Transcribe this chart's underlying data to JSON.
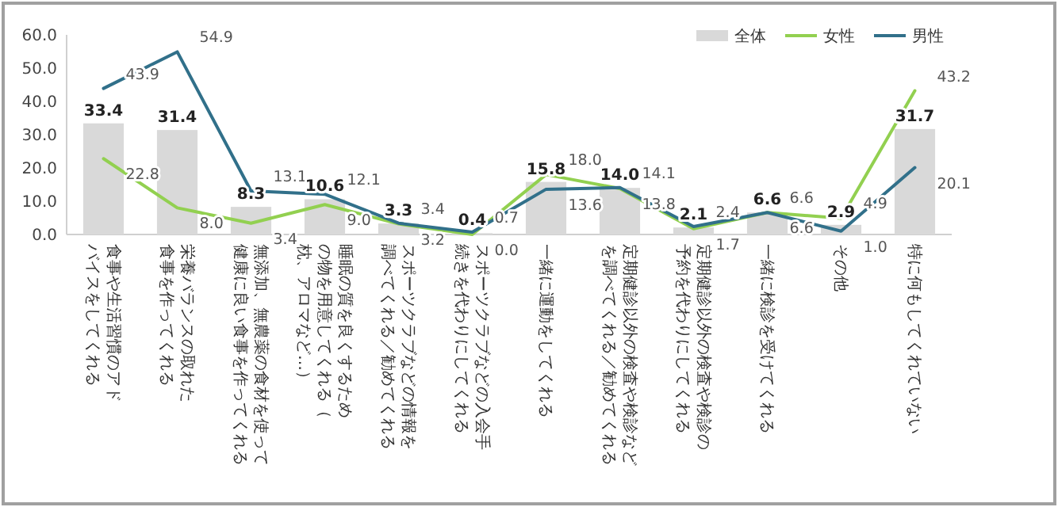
{
  "chart_data": {
    "type": "bar",
    "categories": [
      "食事や生活習慣のアドバイスをしてくれる",
      "栄養バランスの取れた食事を作ってくれる",
      "無添加、無農薬の食材を使って健康に良い食事を作ってくれる",
      "睡眠の質を良くするための物を用意してくれる（枕、アロマなど…）",
      "スポーツクラブなどの情報を調べてくれる／勧めてくれる",
      "スポーツクラブなどの入会手続きを代わりにしてくれる",
      "一緒に運動をしてくれる",
      "定期健診以外の検査や検診などを調べてくれる／勧めてくれる",
      "定期健診以外の検査や検診の予約を代わりにしてくれる",
      "一緒に検診を受けてくれる",
      "その他",
      "特に何もしてくれていない"
    ],
    "series": [
      {
        "name": "全体",
        "type": "bar",
        "color": "#d9d9d9",
        "values": [
          33.4,
          31.4,
          8.3,
          10.6,
          3.3,
          0.4,
          15.8,
          14.0,
          2.1,
          6.6,
          2.9,
          31.7
        ],
        "value_labels": [
          "33.4",
          "31.4",
          "8.3",
          "10.6",
          "3.3",
          "0.4",
          "15.8",
          "14.0",
          "2.1",
          "6.6",
          "2.9",
          "31.7"
        ]
      },
      {
        "name": "女性",
        "type": "line",
        "color": "#92d050",
        "values": [
          22.8,
          8.0,
          3.4,
          9.0,
          3.2,
          0.0,
          18.0,
          13.8,
          1.7,
          6.6,
          4.9,
          43.2
        ],
        "value_labels": [
          "22.8",
          "8.0",
          "3.4",
          "9.0",
          "3.2",
          "0.0",
          "18.0",
          "13.8",
          "1.7",
          "6.6",
          "4.9",
          "43.2"
        ]
      },
      {
        "name": "男性",
        "type": "line",
        "color": "#31708a",
        "values": [
          43.9,
          54.9,
          13.1,
          12.1,
          3.4,
          0.7,
          13.6,
          14.1,
          2.4,
          6.6,
          1.0,
          20.1
        ],
        "value_labels": [
          "43.9",
          "54.9",
          "13.1",
          "12.1",
          "3.4",
          "0.7",
          "13.6",
          "14.1",
          "2.4",
          "6.6",
          "1.0",
          "20.1"
        ]
      }
    ],
    "ylim": [
      0,
      60
    ],
    "yticks": [
      {
        "value": 0,
        "label": "0.0"
      },
      {
        "value": 10,
        "label": "10.0"
      },
      {
        "value": 20,
        "label": "20.0"
      },
      {
        "value": 30,
        "label": "30.0"
      },
      {
        "value": 40,
        "label": "40.0"
      },
      {
        "value": 50,
        "label": "50.0"
      },
      {
        "value": 60,
        "label": "60.0"
      }
    ],
    "legend": "top right"
  }
}
